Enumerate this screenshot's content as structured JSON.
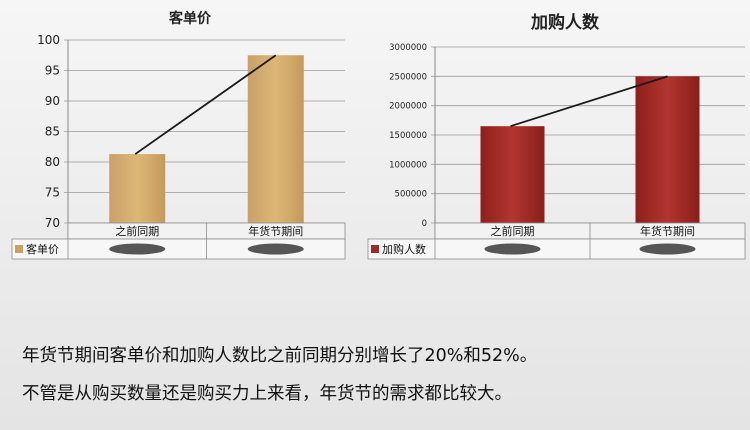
{
  "chart_data": [
    {
      "type": "bar",
      "title": "客单价",
      "categories": [
        "之前同期",
        "年货节期间"
      ],
      "series": [
        {
          "name": "客单价",
          "values": [
            81.3,
            97.5
          ]
        }
      ],
      "ylim": [
        70,
        100
      ],
      "yticks": [
        "70",
        "75",
        "80",
        "85",
        "90",
        "95",
        "100"
      ],
      "trendline": true,
      "table_values_obscured": true,
      "bar_color": "#d4a865",
      "grid": true
    },
    {
      "type": "bar",
      "title": "加购人数",
      "categories": [
        "之前同期",
        "年货节期间"
      ],
      "series": [
        {
          "name": "加购人数",
          "values": [
            1650000,
            2500000
          ]
        }
      ],
      "ylim": [
        0,
        3000000
      ],
      "yticks": [
        "0",
        "500000",
        "1000000",
        "1500000",
        "2000000",
        "2500000",
        "3000000"
      ],
      "trendline": true,
      "table_values_obscured": true,
      "bar_color": "#9c2a25",
      "grid": true
    }
  ],
  "summary": {
    "line1": "年货节期间客单价和加购人数比之前同期分别增长了20%和52%。",
    "line2": "不管是从购买数量还是购买力上来看，年货节的需求都比较大。"
  }
}
